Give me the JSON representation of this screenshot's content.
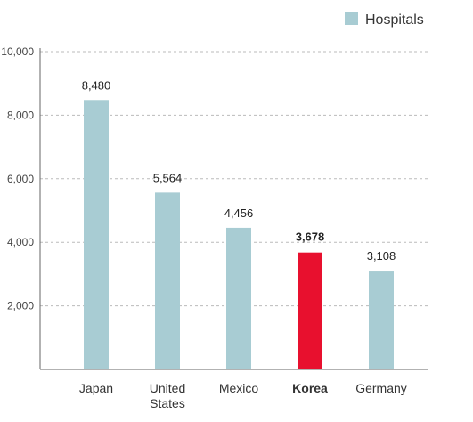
{
  "chart_data": {
    "type": "bar",
    "categories": [
      "Japan",
      "United States",
      "Mexico",
      "Korea",
      "Germany"
    ],
    "category_lines": [
      [
        "Japan"
      ],
      [
        "United",
        "States"
      ],
      [
        "Mexico"
      ],
      [
        "Korea"
      ],
      [
        "Germany"
      ]
    ],
    "series": [
      {
        "name": "Hospitals",
        "values": [
          8480,
          5564,
          4456,
          3678,
          3108
        ]
      }
    ],
    "value_labels": [
      "8,480",
      "5,564",
      "4,456",
      "3,678",
      "3,108"
    ],
    "highlight_category": "Korea",
    "ylim": [
      0,
      10000
    ],
    "yticks": [
      2000,
      4000,
      6000,
      8000,
      10000
    ],
    "ytick_labels": [
      "2,000",
      "4,000",
      "6,000",
      "8,000",
      "10,000"
    ],
    "grid": true,
    "legend_position": "top-right",
    "title": "",
    "xlabel": "",
    "ylabel": ""
  },
  "colors": {
    "bar": "#a8ccd3",
    "highlight": "#e8102e",
    "grid": "#bbbbbb",
    "axis": "#666666",
    "text": "#333333"
  }
}
